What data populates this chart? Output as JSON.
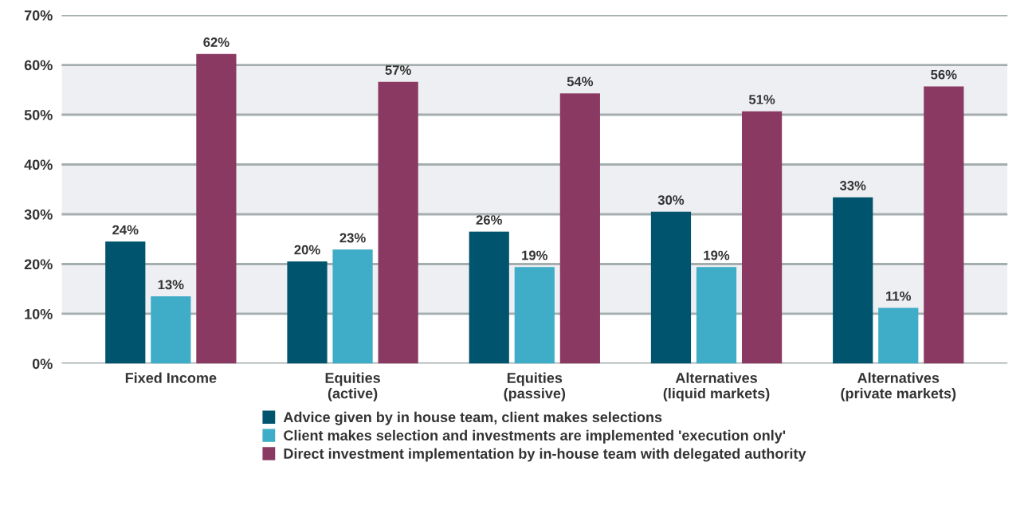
{
  "chart_data": {
    "type": "bar",
    "categories": [
      "Fixed Income",
      "Equities\n(active)",
      "Equities\n(passive)",
      "Alternatives\n(liquid markets)",
      "Alternatives\n(private markets)"
    ],
    "series": [
      {
        "name": "Advice given by in house team, client makes selections",
        "color": "#00546e",
        "values": [
          24.5,
          20.5,
          26.5,
          30.5,
          33.4
        ],
        "value_labels": [
          "24%",
          "20%",
          "26%",
          "30%",
          "33%"
        ]
      },
      {
        "name": "Client makes selection and investments are implemented 'execution only'",
        "color": "#3fadc7",
        "values": [
          13.5,
          22.9,
          19.4,
          19.4,
          11.2
        ],
        "value_labels": [
          "13%",
          "23%",
          "19%",
          "19%",
          "11%"
        ]
      },
      {
        "name": "Direct investment implementation by in-house team with delegated authority",
        "color": "#8a3a62",
        "values": [
          62.2,
          56.6,
          54.3,
          50.7,
          55.7
        ],
        "value_labels": [
          "62%",
          "57%",
          "54%",
          "51%",
          "56%"
        ]
      }
    ],
    "ylim": [
      0,
      70
    ],
    "yticks": [
      {
        "value": 0,
        "label": "0%"
      },
      {
        "value": 10,
        "label": "10%"
      },
      {
        "value": 20,
        "label": "20%"
      },
      {
        "value": 30,
        "label": "30%"
      },
      {
        "value": 40,
        "label": "40%"
      },
      {
        "value": 50,
        "label": "50%"
      },
      {
        "value": 60,
        "label": "60%"
      },
      {
        "value": 70,
        "label": "70%"
      }
    ],
    "bands": [
      {
        "axis": "y",
        "from": 10,
        "to": 20,
        "color": "#eeeff3"
      },
      {
        "axis": "y",
        "from": 30,
        "to": 40,
        "color": "#eeeff3"
      },
      {
        "axis": "y",
        "from": 50,
        "to": 60,
        "color": "#eeeff3"
      }
    ],
    "grid": "y",
    "legend": "bottom"
  }
}
